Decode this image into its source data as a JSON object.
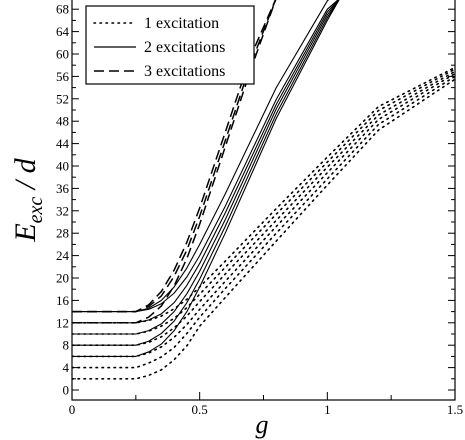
{
  "chart_data": {
    "type": "line",
    "title": "",
    "xlabel": "g",
    "ylabel_main": "E",
    "ylabel_sub": "exc",
    "ylabel_tail": " / d",
    "xlim": [
      0,
      1.5
    ],
    "ylim": [
      0,
      69
    ],
    "xticks": [
      {
        "value": 0,
        "label": "0"
      },
      {
        "value": 0.5,
        "label": "0.5"
      },
      {
        "value": 1,
        "label": "1"
      },
      {
        "value": 1.5,
        "label": "1.5"
      }
    ],
    "yticks": [
      {
        "value": 0,
        "label": "0"
      },
      {
        "value": 4,
        "label": "4"
      },
      {
        "value": 8,
        "label": "8"
      },
      {
        "value": 12,
        "label": "12"
      },
      {
        "value": 16,
        "label": "16"
      },
      {
        "value": 20,
        "label": "20"
      },
      {
        "value": 24,
        "label": "24"
      },
      {
        "value": 28,
        "label": "28"
      },
      {
        "value": 32,
        "label": "32"
      },
      {
        "value": 36,
        "label": "36"
      },
      {
        "value": 40,
        "label": "40"
      },
      {
        "value": 44,
        "label": "44"
      },
      {
        "value": 48,
        "label": "48"
      },
      {
        "value": 52,
        "label": "52"
      },
      {
        "value": 56,
        "label": "56"
      },
      {
        "value": 60,
        "label": "60"
      },
      {
        "value": 64,
        "label": "64"
      },
      {
        "value": 68,
        "label": "68"
      }
    ],
    "legend_position": "top-left",
    "grid": false,
    "series": [
      {
        "name": "1 excitation",
        "style": "dotted",
        "color": "#000000",
        "curves": [
          [
            [
              0,
              2
            ],
            [
              0.25,
              2
            ],
            [
              0.3,
              2.6
            ],
            [
              0.35,
              3.6
            ],
            [
              0.4,
              5.4
            ],
            [
              0.45,
              7.9
            ],
            [
              0.5,
              11.4
            ],
            [
              0.6,
              16.5
            ],
            [
              0.8,
              26.6
            ],
            [
              1.0,
              36.6
            ],
            [
              1.2,
              46.4
            ],
            [
              1.5,
              55.5
            ]
          ],
          [
            [
              0,
              4
            ],
            [
              0.25,
              4
            ],
            [
              0.3,
              4.8
            ],
            [
              0.35,
              5.9
            ],
            [
              0.4,
              7.6
            ],
            [
              0.45,
              10.1
            ],
            [
              0.5,
              13.0
            ],
            [
              0.6,
              18.1
            ],
            [
              0.8,
              28.0
            ],
            [
              1.0,
              37.7
            ],
            [
              1.2,
              47.4
            ],
            [
              1.5,
              56.0
            ]
          ],
          [
            [
              0,
              6
            ],
            [
              0.25,
              6
            ],
            [
              0.3,
              6.6
            ],
            [
              0.35,
              7.7
            ],
            [
              0.4,
              9.4
            ],
            [
              0.45,
              11.7
            ],
            [
              0.5,
              14.4
            ],
            [
              0.6,
              19.4
            ],
            [
              0.8,
              29.2
            ],
            [
              1.0,
              38.8
            ],
            [
              1.2,
              48.3
            ],
            [
              1.5,
              56.5
            ]
          ],
          [
            [
              0,
              8
            ],
            [
              0.25,
              8
            ],
            [
              0.3,
              8.5
            ],
            [
              0.35,
              9.5
            ],
            [
              0.4,
              11.1
            ],
            [
              0.45,
              13.2
            ],
            [
              0.5,
              15.8
            ],
            [
              0.6,
              20.7
            ],
            [
              0.8,
              30.3
            ],
            [
              1.0,
              39.8
            ],
            [
              1.2,
              49.1
            ],
            [
              1.5,
              56.9
            ]
          ],
          [
            [
              0,
              10
            ],
            [
              0.25,
              10
            ],
            [
              0.3,
              10.5
            ],
            [
              0.35,
              11.4
            ],
            [
              0.4,
              12.8
            ],
            [
              0.45,
              14.7
            ],
            [
              0.5,
              17.1
            ],
            [
              0.6,
              21.9
            ],
            [
              0.8,
              31.4
            ],
            [
              1.0,
              40.7
            ],
            [
              1.2,
              49.9
            ],
            [
              1.5,
              57.3
            ]
          ],
          [
            [
              0,
              12
            ],
            [
              0.25,
              12
            ],
            [
              0.3,
              12.4
            ],
            [
              0.35,
              13.2
            ],
            [
              0.4,
              14.5
            ],
            [
              0.45,
              16.2
            ],
            [
              0.5,
              18.4
            ],
            [
              0.6,
              23.0
            ],
            [
              0.8,
              32.4
            ],
            [
              1.0,
              41.6
            ],
            [
              1.2,
              50.6
            ],
            [
              1.5,
              57.6
            ]
          ]
        ]
      },
      {
        "name": "2 excitations",
        "style": "solid",
        "color": "#000000",
        "curves": [
          [
            [
              0,
              6
            ],
            [
              0.25,
              6
            ],
            [
              0.3,
              6.8
            ],
            [
              0.35,
              8.2
            ],
            [
              0.4,
              10.6
            ],
            [
              0.45,
              14.0
            ],
            [
              0.5,
              18.4
            ],
            [
              0.6,
              28.0
            ],
            [
              0.8,
              48.5
            ],
            [
              1.0,
              66.0
            ],
            [
              1.05,
              70.0
            ]
          ],
          [
            [
              0,
              8
            ],
            [
              0.25,
              8
            ],
            [
              0.3,
              8.7
            ],
            [
              0.35,
              10.1
            ],
            [
              0.4,
              12.3
            ],
            [
              0.45,
              15.6
            ],
            [
              0.5,
              19.8
            ],
            [
              0.6,
              29.2
            ],
            [
              0.8,
              49.3
            ],
            [
              1.0,
              66.5
            ],
            [
              1.05,
              70.0
            ]
          ],
          [
            [
              0,
              10
            ],
            [
              0.25,
              10
            ],
            [
              0.3,
              10.6
            ],
            [
              0.35,
              11.8
            ],
            [
              0.4,
              14.0
            ],
            [
              0.45,
              17.2
            ],
            [
              0.5,
              21.2
            ],
            [
              0.6,
              30.4
            ],
            [
              0.8,
              50.2
            ],
            [
              1.0,
              67.0
            ],
            [
              1.05,
              70.0
            ]
          ],
          [
            [
              0,
              12
            ],
            [
              0.25,
              12
            ],
            [
              0.3,
              12.5
            ],
            [
              0.35,
              13.6
            ],
            [
              0.4,
              15.6
            ],
            [
              0.45,
              18.7
            ],
            [
              0.5,
              22.6
            ],
            [
              0.6,
              31.6
            ],
            [
              0.8,
              51.0
            ],
            [
              1.0,
              67.5
            ],
            [
              1.05,
              70.0
            ]
          ],
          [
            [
              0,
              14
            ],
            [
              0.25,
              14
            ],
            [
              0.3,
              14.4
            ],
            [
              0.35,
              15.4
            ],
            [
              0.4,
              17.3
            ],
            [
              0.45,
              20.2
            ],
            [
              0.5,
              24.0
            ],
            [
              0.6,
              32.8
            ],
            [
              0.8,
              51.9
            ],
            [
              1.0,
              68.0
            ],
            [
              1.05,
              70.0
            ]
          ],
          [
            [
              0,
              14
            ],
            [
              0.25,
              14
            ],
            [
              0.3,
              14.6
            ],
            [
              0.35,
              16.0
            ],
            [
              0.4,
              18.4
            ],
            [
              0.45,
              21.8
            ],
            [
              0.5,
              26.0
            ],
            [
              0.6,
              35.0
            ],
            [
              0.8,
              54.0
            ],
            [
              1.0,
              69.5
            ],
            [
              1.05,
              71.5
            ]
          ]
        ]
      },
      {
        "name": "3 excitations",
        "style": "dashed",
        "color": "#000000",
        "curves": [
          [
            [
              0,
              12
            ],
            [
              0.25,
              12
            ],
            [
              0.3,
              13.0
            ],
            [
              0.35,
              15.0
            ],
            [
              0.4,
              18.6
            ],
            [
              0.45,
              23.5
            ],
            [
              0.5,
              29.6
            ],
            [
              0.6,
              43.4
            ],
            [
              0.7,
              57.2
            ],
            [
              0.8,
              70.0
            ]
          ],
          [
            [
              0,
              14
            ],
            [
              0.25,
              14
            ],
            [
              0.3,
              14.9
            ],
            [
              0.35,
              16.8
            ],
            [
              0.4,
              20.3
            ],
            [
              0.45,
              25.0
            ],
            [
              0.5,
              31.0
            ],
            [
              0.6,
              44.5
            ],
            [
              0.7,
              58.2
            ],
            [
              0.8,
              70.0
            ]
          ],
          [
            [
              0,
              14
            ],
            [
              0.25,
              14
            ],
            [
              0.3,
              15.2
            ],
            [
              0.35,
              17.6
            ],
            [
              0.4,
              21.4
            ],
            [
              0.45,
              26.4
            ],
            [
              0.5,
              32.5
            ],
            [
              0.6,
              46.0
            ],
            [
              0.7,
              59.6
            ],
            [
              0.8,
              70.0
            ]
          ]
        ]
      }
    ]
  }
}
